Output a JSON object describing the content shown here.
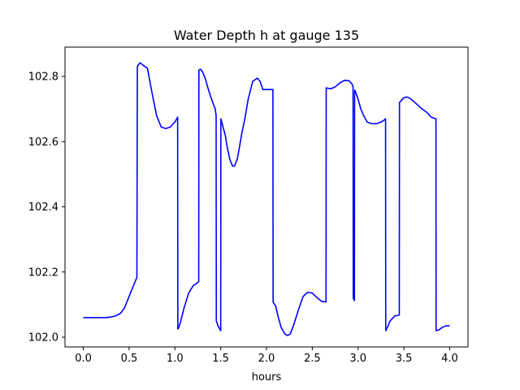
{
  "chart_data": {
    "type": "line",
    "title": "Water Depth h at gauge 135",
    "xlabel": "hours",
    "ylabel": "",
    "xlim": [
      -0.2,
      4.2
    ],
    "ylim": [
      101.97,
      102.89
    ],
    "xticks": [
      0.0,
      0.5,
      1.0,
      1.5,
      2.0,
      2.5,
      3.0,
      3.5,
      4.0
    ],
    "xtick_labels": [
      "0.0",
      "0.5",
      "1.0",
      "1.5",
      "2.0",
      "2.5",
      "3.0",
      "3.5",
      "4.0"
    ],
    "yticks": [
      102.0,
      102.2,
      102.4,
      102.6,
      102.8
    ],
    "ytick_labels": [
      "102.0",
      "102.2",
      "102.4",
      "102.6",
      "102.8"
    ],
    "grid": false,
    "series": [
      {
        "color": "#0000ff",
        "x": [
          0.0,
          0.1,
          0.2,
          0.25,
          0.3,
          0.35,
          0.4,
          0.42,
          0.45,
          0.5,
          0.55,
          0.58,
          0.585,
          0.59,
          0.6,
          0.62,
          0.65,
          0.7,
          0.75,
          0.8,
          0.85,
          0.9,
          0.95,
          1.0,
          1.03,
          1.032,
          1.04,
          1.06,
          1.1,
          1.15,
          1.2,
          1.25,
          1.26,
          1.262,
          1.28,
          1.3,
          1.33,
          1.36,
          1.4,
          1.44,
          1.45,
          1.452,
          1.47,
          1.5,
          1.502,
          1.51,
          1.53,
          1.55,
          1.57,
          1.6,
          1.63,
          1.65,
          1.68,
          1.7,
          1.73,
          1.76,
          1.8,
          1.85,
          1.9,
          1.93,
          1.96,
          2.0,
          2.04,
          2.07,
          2.072,
          2.1,
          2.13,
          2.16,
          2.2,
          2.23,
          2.26,
          2.3,
          2.35,
          2.4,
          2.45,
          2.5,
          2.55,
          2.6,
          2.65,
          2.652,
          2.7,
          2.75,
          2.8,
          2.85,
          2.9,
          2.93,
          2.945,
          2.947,
          2.96,
          2.962,
          2.97,
          3.0,
          3.03,
          3.06,
          3.1,
          3.15,
          3.2,
          3.25,
          3.28,
          3.3,
          3.302,
          3.32,
          3.35,
          3.4,
          3.45,
          3.452,
          3.5,
          3.54,
          3.58,
          3.62,
          3.66,
          3.7,
          3.75,
          3.8,
          3.85,
          3.852,
          3.88,
          3.92,
          3.96,
          4.0
        ],
        "y": [
          102.06,
          102.06,
          102.06,
          102.06,
          102.062,
          102.065,
          102.072,
          102.078,
          102.09,
          102.125,
          102.16,
          102.18,
          102.182,
          102.83,
          102.835,
          102.842,
          102.835,
          102.825,
          102.75,
          102.68,
          102.645,
          102.64,
          102.645,
          102.66,
          102.675,
          102.025,
          102.028,
          102.045,
          102.09,
          102.135,
          102.158,
          102.168,
          102.17,
          102.82,
          102.822,
          102.815,
          102.795,
          102.765,
          102.73,
          102.7,
          102.68,
          102.05,
          102.035,
          102.02,
          102.67,
          102.662,
          102.64,
          102.62,
          102.585,
          102.545,
          102.525,
          102.525,
          102.545,
          102.575,
          102.625,
          102.665,
          102.73,
          102.785,
          102.795,
          102.785,
          102.76,
          102.76,
          102.76,
          102.76,
          102.108,
          102.095,
          102.06,
          102.03,
          102.01,
          102.005,
          102.01,
          102.04,
          102.085,
          102.125,
          102.138,
          102.135,
          102.122,
          102.11,
          102.108,
          102.765,
          102.762,
          102.768,
          102.78,
          102.788,
          102.787,
          102.778,
          102.77,
          102.12,
          102.112,
          102.758,
          102.755,
          102.73,
          102.7,
          102.68,
          102.66,
          102.655,
          102.655,
          102.66,
          102.665,
          102.67,
          102.02,
          102.03,
          102.05,
          102.065,
          102.068,
          102.72,
          102.735,
          102.737,
          102.73,
          102.72,
          102.71,
          102.7,
          102.69,
          102.675,
          102.67,
          102.02,
          102.022,
          102.03,
          102.035,
          102.035
        ]
      }
    ]
  }
}
